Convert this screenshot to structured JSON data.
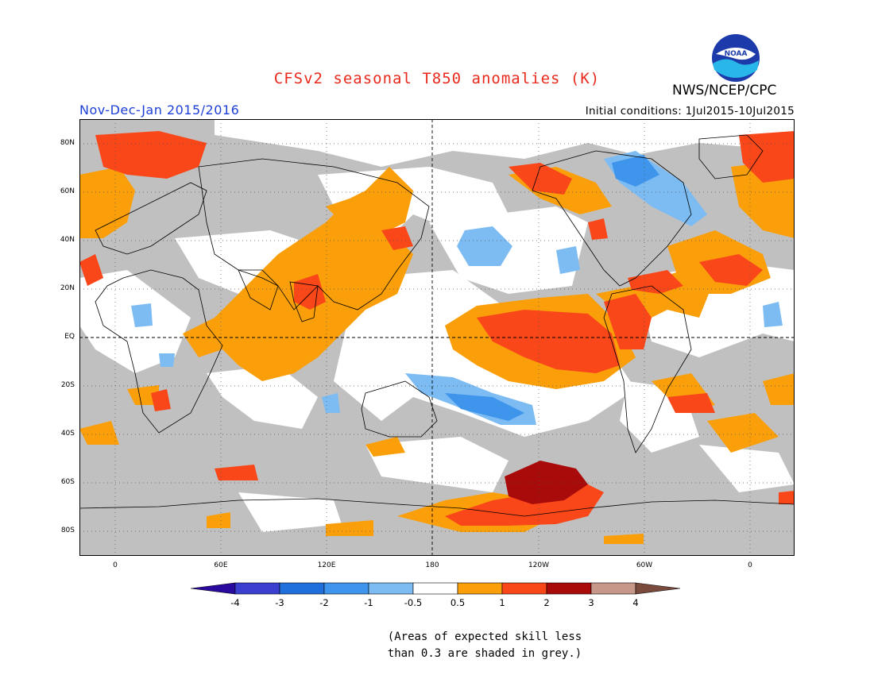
{
  "header": {
    "title": "CFSv2 seasonal T850 anomalies (K)",
    "agency": "NWS/NCEP/CPC",
    "season": "Nov-Dec-Jan 2015/2016",
    "initial_conditions": "Initial conditions: 1Jul2015-10Jul2015",
    "logo_text": "NOAA"
  },
  "map": {
    "lat_labels": [
      "80N",
      "60N",
      "40N",
      "20N",
      "EQ",
      "20S",
      "40S",
      "60S",
      "80S"
    ],
    "lon_labels": [
      "0",
      "60E",
      "120E",
      "180",
      "120W",
      "60W",
      "0"
    ]
  },
  "colorbar": {
    "labels": [
      "-4",
      "-3",
      "-2",
      "-1",
      "-0.5",
      "0.5",
      "1",
      "2",
      "3",
      "4"
    ],
    "colors": [
      "#2a0a9e",
      "#3b3fd0",
      "#1f6fdc",
      "#3f95ec",
      "#7cbcf3",
      "#ffffff",
      "#fa9f0a",
      "#f9471a",
      "#a90b0b",
      "#c7978a",
      "#7a4a3d"
    ]
  },
  "footnote": {
    "line1": "(Areas of expected skill less",
    "line2": "than 0.3 are shaded in grey.)"
  }
}
